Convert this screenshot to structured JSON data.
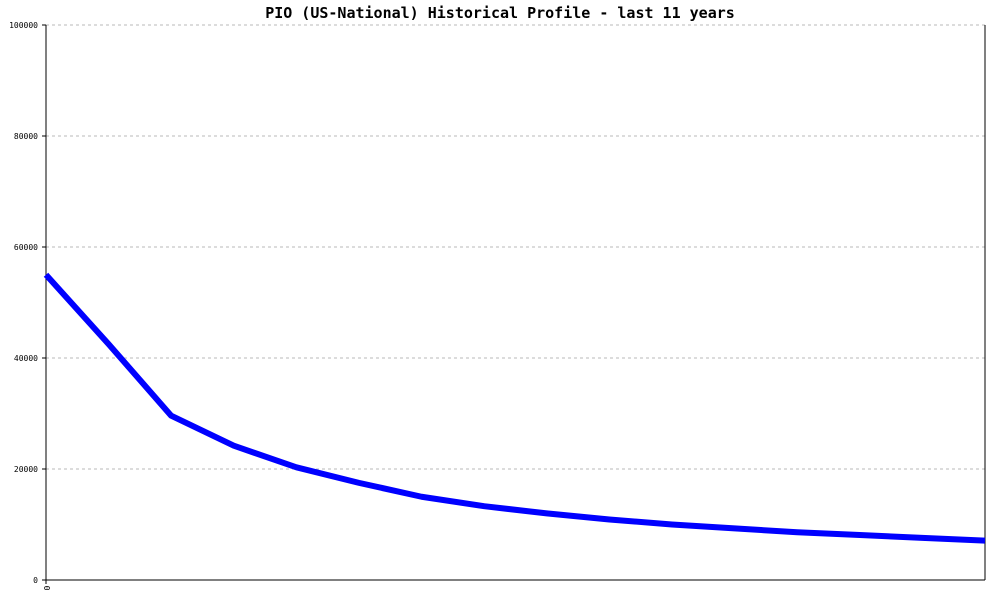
{
  "chart_data": {
    "type": "line",
    "title": "PIO (US-National) Historical Profile - last 11 years",
    "xlabel": "",
    "ylabel": "",
    "x_tick_labels": [
      "0"
    ],
    "y_ticks": [
      0,
      20000,
      40000,
      60000,
      80000,
      100000
    ],
    "ylim": [
      0,
      100000
    ],
    "grid": true,
    "legend": "none",
    "series": [
      {
        "color": "#0000ff",
        "values": [
          55000,
          42500,
          29600,
          24200,
          20300,
          17500,
          15000,
          13300,
          12000,
          10900,
          10000,
          9300,
          8600,
          8100,
          7600,
          7100
        ]
      }
    ]
  }
}
